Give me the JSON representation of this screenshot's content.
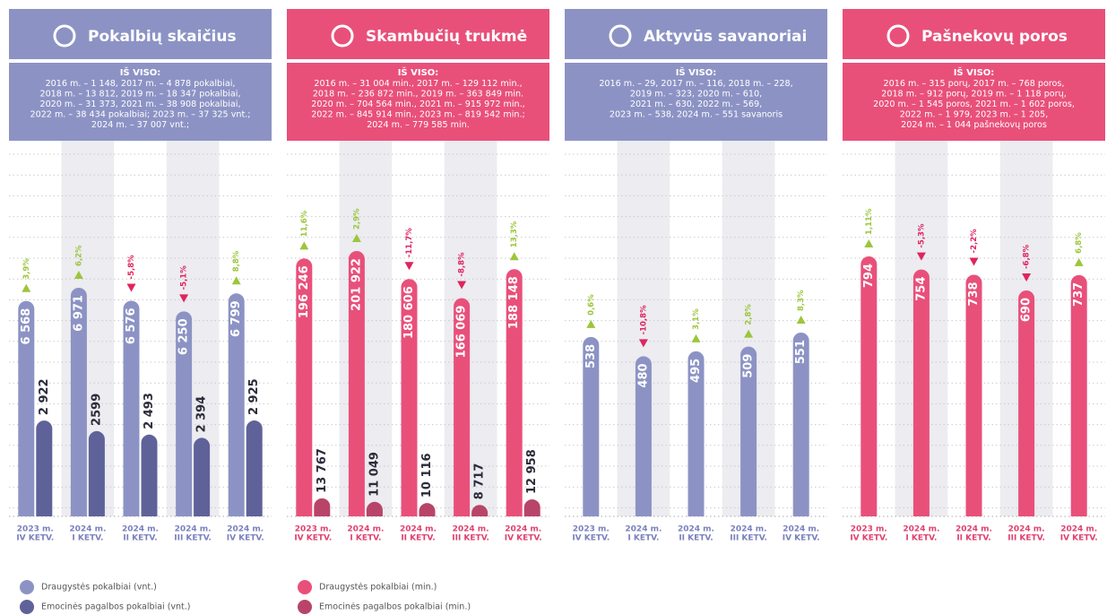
{
  "chart_data": [
    {
      "type": "bar",
      "title": "Pokalbių skaičius",
      "summary_title": "IŠ VISO:",
      "summary": [
        "2016 m. – 1 148, 2017 m. – 4 878 pokalbiai,",
        "2018 m. – 13 812, 2019 m. – 18 347 pokalbiai,",
        "2020 m. – 31 373, 2021 m. – 38 908 pokalbiai,",
        "2022 m. – 38 434 pokalbiai; 2023 m. – 37 325 vnt.;",
        "2024 m. – 37 007 vnt.;"
      ],
      "header_color": "#8c93c4",
      "category_color": "#7a80bd",
      "categories": [
        [
          "2023 m.",
          "IV KETV."
        ],
        [
          "2024 m.",
          "I KETV."
        ],
        [
          "2024 m.",
          "II KETV."
        ],
        [
          "2024 m.",
          "III KETV."
        ],
        [
          "2024 m.",
          "IV KETV."
        ]
      ],
      "series": [
        {
          "name": "Draugystės pokalbiai (vnt.)",
          "color": "#8c93c4",
          "values": [
            6568,
            6971,
            6576,
            6250,
            6799
          ],
          "value_labels": [
            "6 568",
            "6 971",
            "6 576",
            "6 250",
            "6 799"
          ]
        },
        {
          "name": "Emocinės pagalbos pokalbiai (vnt.)",
          "color": "#5f6299",
          "values": [
            2922,
            2599,
            2493,
            2394,
            2925
          ],
          "value_labels": [
            "2 922",
            "2599",
            "2 493",
            "2 394",
            "2 925"
          ]
        }
      ],
      "changes": {
        "values": [
          3.9,
          6.2,
          -5.8,
          -5.1,
          8.8
        ],
        "value_labels": [
          "3,9%",
          "6,2%",
          "-5,8%",
          "-5,1%",
          "8,8%"
        ]
      }
    },
    {
      "type": "bar",
      "title": "Skambučių trukmė",
      "summary_title": "IŠ VISO:",
      "summary": [
        "2016 m. – 31 004 min., 2017 m. – 129 112 min.,",
        "2018 m. – 236 872 min., 2019 m. – 363 849 min.",
        "2020 m. – 704 564 min., 2021 m. – 915 972 min.,",
        "2022 m. – 845 914 min., 2023 m. – 819 542 min.;",
        "2024 m. – 779 585 min."
      ],
      "header_color": "#e8507a",
      "category_color": "#e0406f",
      "categories": [
        [
          "2023 m.",
          "IV KETV."
        ],
        [
          "2024 m.",
          "I KETV."
        ],
        [
          "2024 m.",
          "II KETV."
        ],
        [
          "2024 m.",
          "III KETV."
        ],
        [
          "2024 m.",
          "IV KETV."
        ]
      ],
      "series": [
        {
          "name": "Draugystės pokalbiai (min.)",
          "color": "#e8507a",
          "values": [
            196246,
            201922,
            180606,
            166069,
            188148
          ],
          "value_labels": [
            "196 246",
            "201 922",
            "180 606",
            "166 069",
            "188 148"
          ]
        },
        {
          "name": "Emocinės pagalbos pokalbiai (min.)",
          "color": "#b94469",
          "values": [
            13767,
            11049,
            10116,
            8717,
            12958
          ],
          "value_labels": [
            "13 767",
            "11 049",
            "10 116",
            "8 717",
            "12 958"
          ]
        }
      ],
      "changes": {
        "values": [
          11.6,
          2.9,
          -11.7,
          -8.8,
          13.3
        ],
        "value_labels": [
          "11,6%",
          "2,9%",
          "-11,7%",
          "-8,8%",
          "13,3%"
        ]
      }
    },
    {
      "type": "bar",
      "title": "Aktyvūs savanoriai",
      "summary_title": "IŠ VISO:",
      "summary": [
        "2016 m. – 29, 2017 m. – 116, 2018 m. – 228,",
        "2019 m. – 323, 2020 m. – 610,",
        "2021 m. – 630, 2022 m. – 569,",
        "2023 m. – 538, 2024 m. – 551 savanoris"
      ],
      "header_color": "#8c93c4",
      "category_color": "#7a80bd",
      "categories": [
        [
          "2023 m.",
          "IV KETV."
        ],
        [
          "2024 m.",
          "I KETV."
        ],
        [
          "2024 m.",
          "II KETV."
        ],
        [
          "2024 m.",
          "III KETV."
        ],
        [
          "2024 m.",
          "IV KETV."
        ]
      ],
      "series": [
        {
          "color": "#8c93c4",
          "values": [
            538,
            480,
            495,
            509,
            551
          ]
        }
      ],
      "changes": {
        "values": [
          0.6,
          -10.8,
          3.1,
          2.8,
          8.3
        ],
        "value_labels": [
          "0,6%",
          "-10,8%",
          "3,1%",
          "2,8%",
          "8,3%"
        ]
      }
    },
    {
      "type": "bar",
      "title": "Pašnekovų poros",
      "summary_title": "IŠ VISO:",
      "summary": [
        "2016 m. – 315 porų, 2017 m. – 768 poros,",
        "2018 m. – 912 porų, 2019 m. – 1 118 porų,",
        "2020 m. – 1 545 poros, 2021 m. – 1 602 poros,",
        "2022 m. – 1 979, 2023 m. – 1 205,",
        "2024 m. – 1 044 pašnekovų poros"
      ],
      "header_color": "#e8507a",
      "category_color": "#e0406f",
      "categories": [
        [
          "2023 m.",
          "IV KETV."
        ],
        [
          "2024 m.",
          "I KETV."
        ],
        [
          "2024 m.",
          "II KETV."
        ],
        [
          "2024 m.",
          "III KETV."
        ],
        [
          "2024 m.",
          "IV KETV."
        ]
      ],
      "series": [
        {
          "color": "#e8507a",
          "values": [
            794,
            754,
            738,
            690,
            737
          ]
        }
      ],
      "changes": {
        "values": [
          1.11,
          -5.3,
          -2.2,
          -6.8,
          6.8
        ],
        "value_labels": [
          "1,11%",
          "-5,3%",
          "-2,2%",
          "-6,8%",
          "6,8%"
        ]
      }
    }
  ]
}
